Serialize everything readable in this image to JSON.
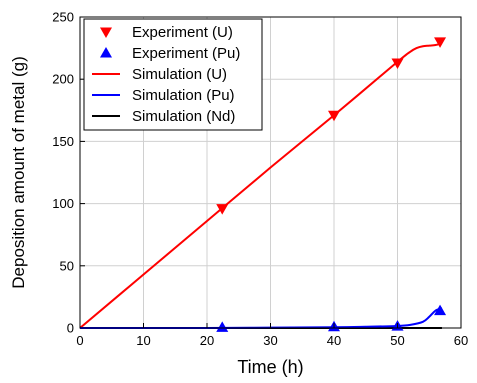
{
  "chart_data": {
    "type": "line",
    "title": "",
    "xlabel": "Time (h)",
    "ylabel": "Deposition amount of metal (g)",
    "xlim": [
      0,
      60
    ],
    "ylim": [
      0,
      250
    ],
    "xticks": [
      0,
      10,
      20,
      30,
      40,
      50,
      60
    ],
    "yticks": [
      0,
      50,
      100,
      150,
      200,
      250
    ],
    "grid": true,
    "legend_position": "top-left",
    "series": [
      {
        "name": "Experiment (U)",
        "kind": "marker",
        "marker": "triangle-down",
        "color": "#ff0000",
        "x": [
          22.4,
          40.0,
          50.0,
          56.7
        ],
        "y": [
          96,
          171,
          213,
          230
        ]
      },
      {
        "name": "Experiment (Pu)",
        "kind": "marker",
        "marker": "triangle-up",
        "color": "#0000ff",
        "x": [
          22.4,
          40.0,
          50.0,
          56.7
        ],
        "y": [
          0.5,
          1.0,
          1.5,
          14
        ]
      },
      {
        "name": "Simulation (U)",
        "kind": "line",
        "color": "#ff0000",
        "x": [
          0,
          10,
          20,
          30,
          40,
          50,
          52,
          53,
          54,
          55,
          56,
          57
        ],
        "y": [
          0,
          43,
          86,
          129,
          171,
          214,
          222,
          225,
          226.5,
          227,
          227.5,
          229
        ]
      },
      {
        "name": "Simulation (Pu)",
        "kind": "line",
        "color": "#0000ff",
        "x": [
          0,
          10,
          20,
          30,
          40,
          45,
          50,
          52,
          54,
          55,
          56,
          57
        ],
        "y": [
          0,
          0,
          0,
          0.3,
          0.6,
          1.0,
          1.6,
          2.5,
          5,
          9,
          14,
          16
        ]
      },
      {
        "name": "Simulation (Nd)",
        "kind": "line",
        "color": "#000000",
        "x": [
          0,
          57
        ],
        "y": [
          0,
          0
        ]
      }
    ]
  }
}
